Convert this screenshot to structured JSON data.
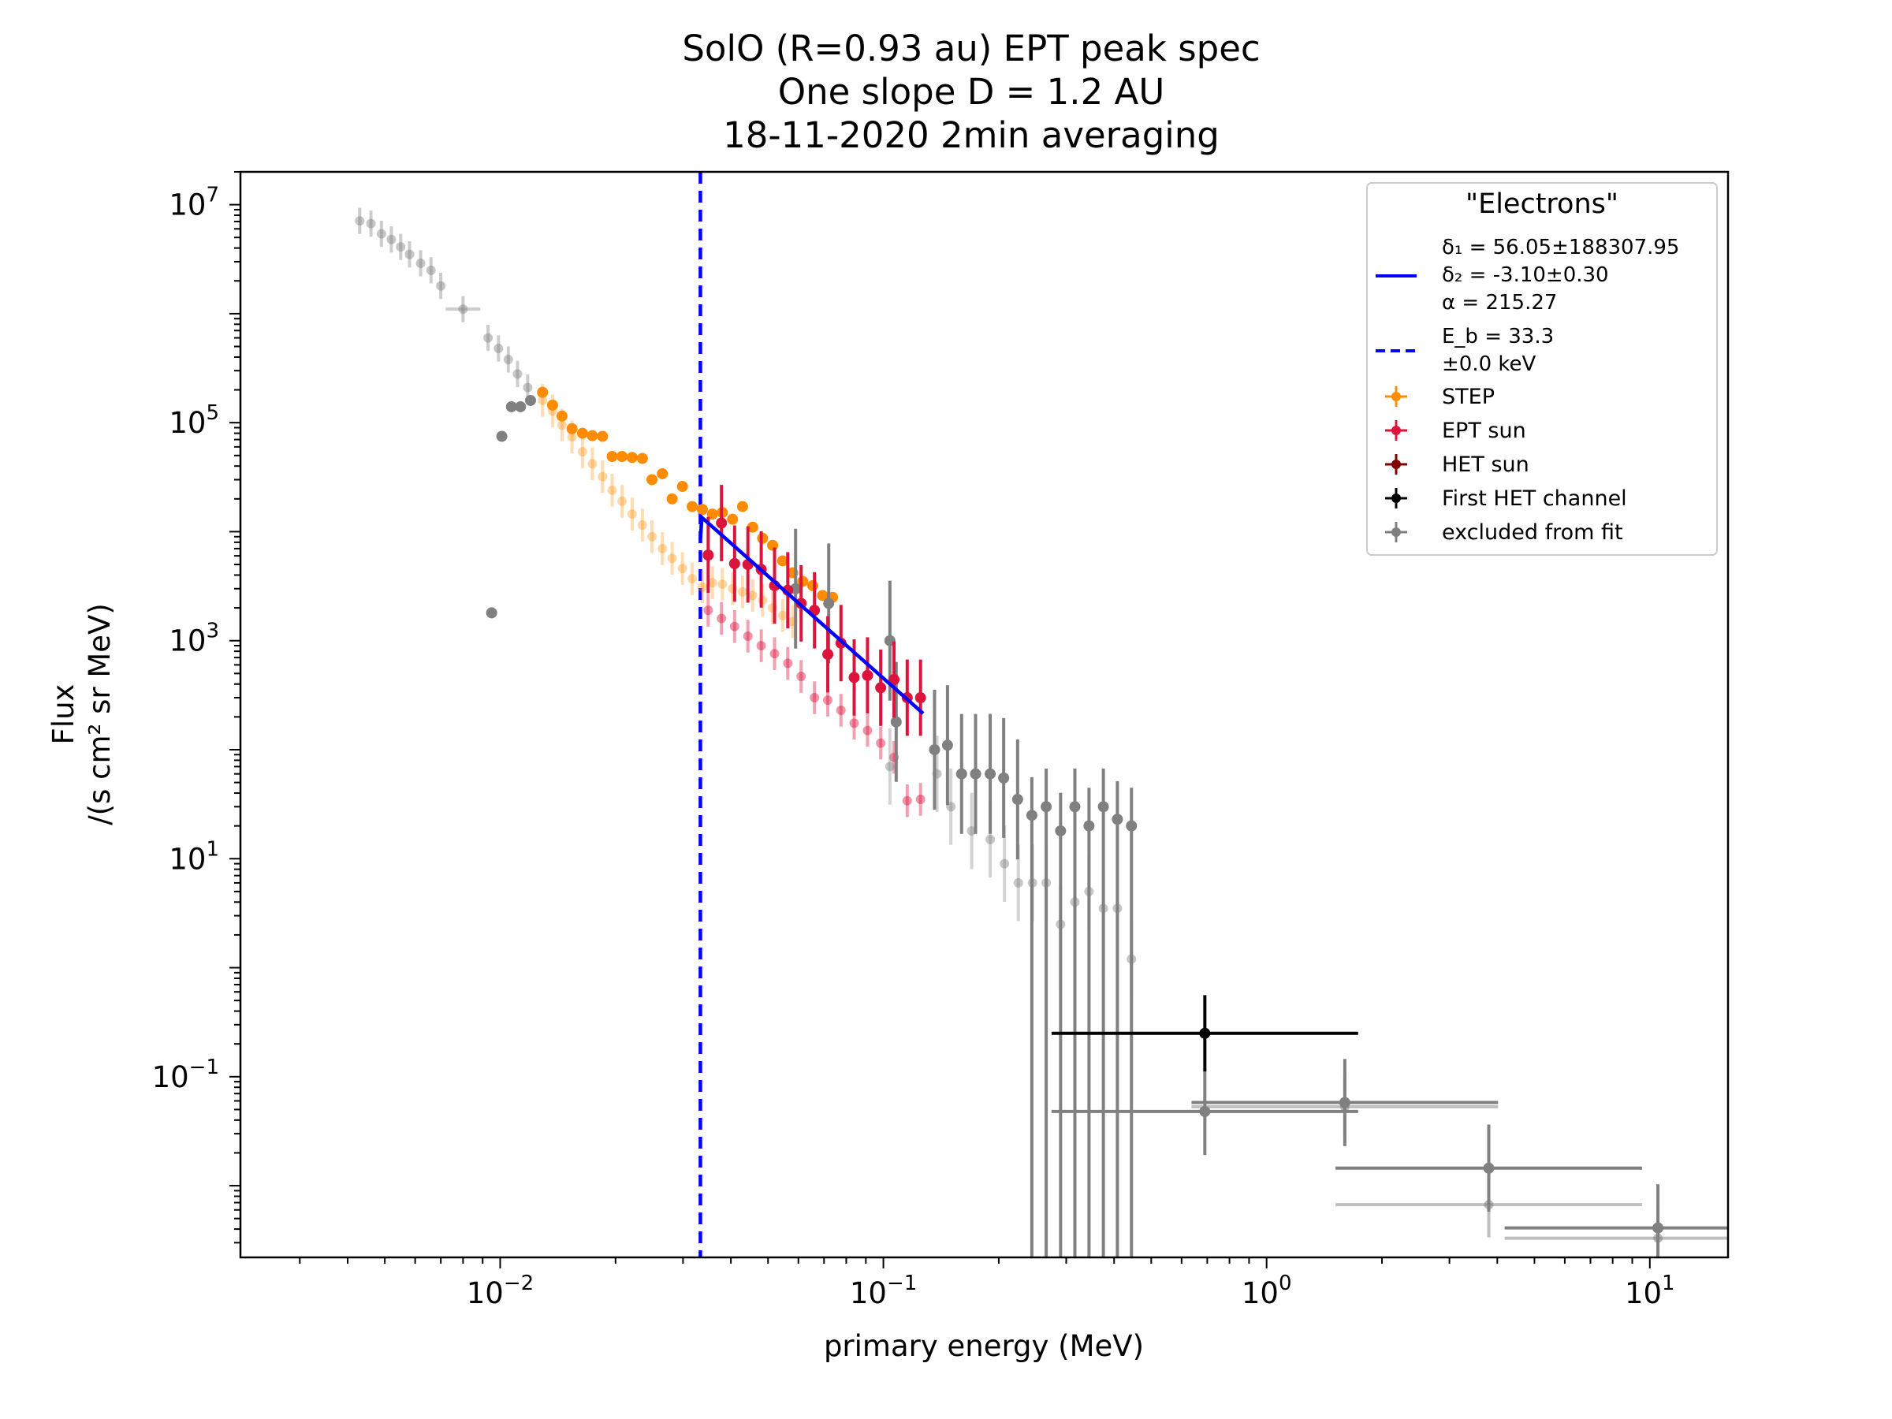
{
  "chart_data": {
    "type": "scatter",
    "title_lines": [
      "SolO  (R=0.93 au) EPT  peak spec",
      "One slope D = 1.2 AU",
      "18-11-2020  2min  averaging"
    ],
    "xlabel": "primary energy (MeV)",
    "ylabel_lines": [
      "Flux",
      "/(s cm² sr MeV)"
    ],
    "x_scale": "log",
    "y_scale": "log",
    "xlim": [
      0.0021,
      16
    ],
    "ylim": [
      0.0022,
      20000000
    ],
    "grid": false,
    "x_ticks": [
      {
        "value": 0.01,
        "base": "10",
        "exp": "−2"
      },
      {
        "value": 0.1,
        "base": "10",
        "exp": "−1"
      },
      {
        "value": 1,
        "base": "10",
        "exp": "0"
      },
      {
        "value": 10,
        "base": "10",
        "exp": "1"
      }
    ],
    "y_ticks": [
      {
        "value": 10000000,
        "base": "10",
        "exp": "7"
      },
      {
        "value": 100000,
        "base": "10",
        "exp": "5"
      },
      {
        "value": 1000,
        "base": "10",
        "exp": "3"
      },
      {
        "value": 10,
        "base": "10",
        "exp": "1"
      },
      {
        "value": 0.1,
        "base": "10",
        "exp": "−1"
      }
    ],
    "legend": {
      "title": "\"Electrons\"",
      "placement": "top-right",
      "fit_lines": [
        "δ₁ = 56.05±188307.95",
        "δ₂ = -3.10±0.30",
        "α = 215.27"
      ],
      "break_lines": [
        "E_b =  33.3",
        "±0.0 keV"
      ],
      "entries": [
        "STEP",
        "EPT sun",
        "HET sun",
        "First HET channel",
        "excluded from fit"
      ]
    },
    "colors": {
      "step": "#ff8c00",
      "ept": "#dc143c",
      "het": "#800000",
      "first_het": "#000000",
      "excluded": "#808080",
      "fit": "#0000ff"
    },
    "break_energy_mev": 0.0333,
    "fit_line": {
      "x": [
        0.0333,
        0.0336,
        0.127
      ],
      "y": [
        8500,
        13500,
        215
      ]
    },
    "series": [
      {
        "name": "excluded from fit",
        "role": "step-excluded",
        "x": [
          0.0043,
          0.0046,
          0.0049,
          0.0052,
          0.0055,
          0.0058,
          0.0062,
          0.0066,
          0.007,
          0.008,
          0.0093,
          0.0099,
          0.0105,
          0.0111,
          0.0118
        ],
        "y": [
          7100000,
          6700000,
          5400000,
          4800000,
          4100000,
          3500000,
          2900000,
          2500000,
          1800000,
          1100000,
          600000,
          480000,
          380000,
          280000,
          210000
        ]
      },
      {
        "name": "STEP",
        "role": "step-faint",
        "x": [
          0.0129,
          0.0137,
          0.0145,
          0.0154,
          0.0164,
          0.0174,
          0.0185,
          0.0196,
          0.0208,
          0.0221,
          0.0235,
          0.0249,
          0.0265,
          0.0281,
          0.0299,
          0.0317,
          0.0337,
          0.0358,
          0.038,
          0.0404,
          0.0429,
          0.0456,
          0.0484,
          0.0514,
          0.0546,
          0.058
        ],
        "y": [
          160000,
          128000,
          95000,
          74000,
          54000,
          42000,
          32000,
          24000,
          19000,
          14500,
          11500,
          9000,
          7000,
          5700,
          4600,
          3700,
          3100,
          3400,
          3300,
          3000,
          2800,
          2600,
          2350,
          2000,
          1700,
          1500
        ]
      },
      {
        "name": "STEP",
        "role": "step-fit",
        "x": [
          0.0129,
          0.0137,
          0.0145,
          0.0154,
          0.0164,
          0.0174,
          0.0185,
          0.0196,
          0.0208,
          0.0221,
          0.0235,
          0.0249,
          0.0265,
          0.0281,
          0.0299,
          0.0317,
          0.0337,
          0.0358,
          0.038,
          0.0404,
          0.0429,
          0.0456,
          0.0484,
          0.0514,
          0.0546,
          0.058,
          0.0616,
          0.0654,
          0.0694,
          0.0737
        ],
        "y": [
          190000,
          145000,
          115000,
          88000,
          80000,
          76000,
          75000,
          49000,
          49000,
          48000,
          47000,
          30000,
          34000,
          20000,
          26000,
          17000,
          16000,
          14500,
          15000,
          13000,
          17000,
          11000,
          8700,
          7500,
          5400,
          4200,
          3500,
          3200,
          2600,
          2500
        ]
      },
      {
        "name": "EPT sun",
        "role": "ept-faint",
        "x": [
          0.0349,
          0.0378,
          0.0409,
          0.0443,
          0.048,
          0.052,
          0.0563,
          0.061,
          0.0661,
          0.0716,
          0.0775,
          0.0839,
          0.0909,
          0.0984,
          0.1066,
          0.1154,
          0.125
        ],
        "y": [
          1900,
          1600,
          1350,
          1100,
          900,
          760,
          620,
          470,
          300,
          285,
          230,
          175,
          150,
          115,
          85,
          34,
          35
        ]
      },
      {
        "name": "EPT sun",
        "role": "ept-fit",
        "x": [
          0.0349,
          0.0378,
          0.0409,
          0.0443,
          0.048,
          0.052,
          0.0563,
          0.061,
          0.0661,
          0.0716,
          0.0775,
          0.0839,
          0.0909,
          0.0984,
          0.1066,
          0.1154,
          0.125
        ],
        "y": [
          6100,
          12000,
          5100,
          5000,
          4500,
          3200,
          2900,
          2200,
          1900,
          750,
          950,
          460,
          480,
          370,
          440,
          300,
          300
        ]
      },
      {
        "name": "excluded from fit",
        "role": "het-pre-excluded",
        "x": [
          0.0095,
          0.0101,
          0.0107,
          0.0113,
          0.012
        ],
        "y": [
          1800,
          75000,
          140000,
          140000,
          160000
        ]
      },
      {
        "name": "excluded from fit",
        "role": "ept-excluded",
        "x": [
          0.059,
          0.072,
          0.104,
          0.108,
          0.136,
          0.147,
          0.16,
          0.174,
          0.19,
          0.206,
          0.224,
          0.244,
          0.266,
          0.29,
          0.316,
          0.344,
          0.375,
          0.408,
          0.444
        ],
        "y": [
          3000,
          2200,
          1000,
          180,
          100,
          110,
          60,
          60,
          60,
          55,
          35,
          25,
          30,
          18,
          30,
          20,
          30,
          23,
          20
        ]
      },
      {
        "name": "excluded from fit",
        "role": "het-faint-excluded",
        "x": [
          0.104,
          0.138,
          0.15,
          0.17,
          0.19,
          0.207,
          0.225,
          0.245,
          0.266,
          0.29,
          0.316,
          0.344,
          0.375,
          0.408,
          0.444
        ],
        "y": [
          70,
          60,
          30,
          18,
          15,
          9,
          6,
          6,
          6,
          2.5,
          4,
          5,
          3.5,
          3.5,
          1.2
        ]
      },
      {
        "name": "First HET channel",
        "role": "first-het",
        "x": [
          0.69
        ],
        "y": [
          0.25
        ]
      },
      {
        "name": "excluded from fit",
        "role": "het-high-excluded",
        "x": [
          0.69,
          1.6,
          3.8,
          10.5
        ],
        "y": [
          0.048,
          0.058,
          0.0145,
          0.0041
        ]
      },
      {
        "name": "excluded from fit",
        "role": "het-high-excluded-faint",
        "x": [
          1.6,
          3.8,
          10.5
        ],
        "y": [
          0.053,
          0.0067,
          0.0033
        ]
      }
    ]
  }
}
